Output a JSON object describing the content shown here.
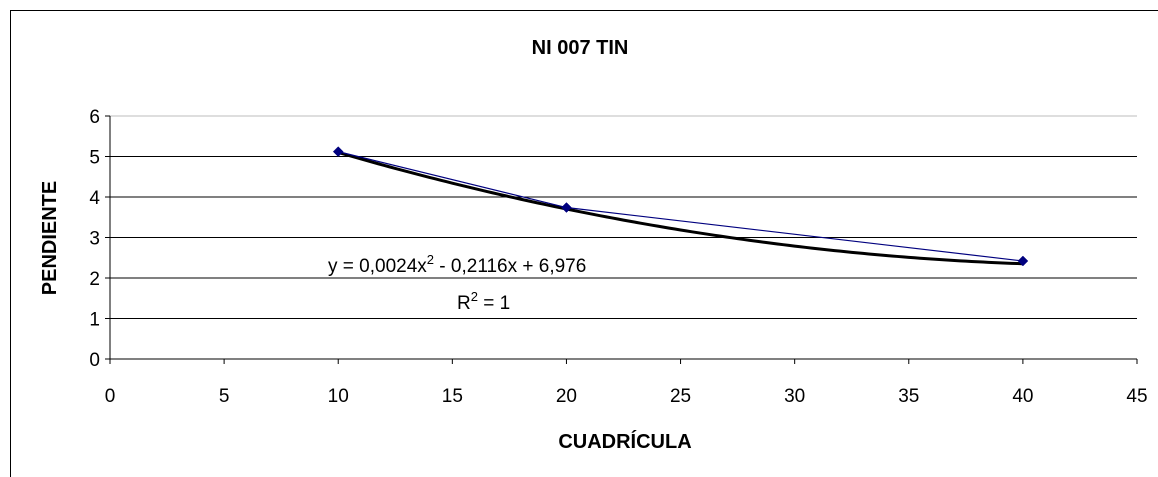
{
  "chart_data": {
    "type": "scatter",
    "title": "NI 007 TIN",
    "xlabel": "CUADRÍCULA",
    "ylabel": "PENDIENTE",
    "xlim": [
      0,
      45
    ],
    "ylim": [
      0,
      6
    ],
    "xticks": [
      "0",
      "5",
      "10",
      "15",
      "20",
      "25",
      "30",
      "35",
      "40",
      "45"
    ],
    "yticks": [
      "0",
      "1",
      "2",
      "3",
      "4",
      "5",
      "6"
    ],
    "grid": "horizontal",
    "series": [
      {
        "x": [
          10,
          20,
          40
        ],
        "y": [
          5.12,
          3.74,
          2.42
        ],
        "color": "#00007f",
        "marker": "diamond",
        "connect_line": true
      }
    ],
    "trendline": {
      "type": "polynomial",
      "order": 2,
      "coefficients": [
        0.0024,
        -0.2116,
        6.976
      ],
      "x_range": [
        10,
        40
      ],
      "color": "#000000"
    },
    "annotations": {
      "equation_prefix": "y = 0,0024x",
      "equation_exp": "2",
      "equation_suffix": " - 0,2116x + 6,976",
      "r2_prefix": "R",
      "r2_exp": "2",
      "r2_suffix": " = 1"
    }
  }
}
